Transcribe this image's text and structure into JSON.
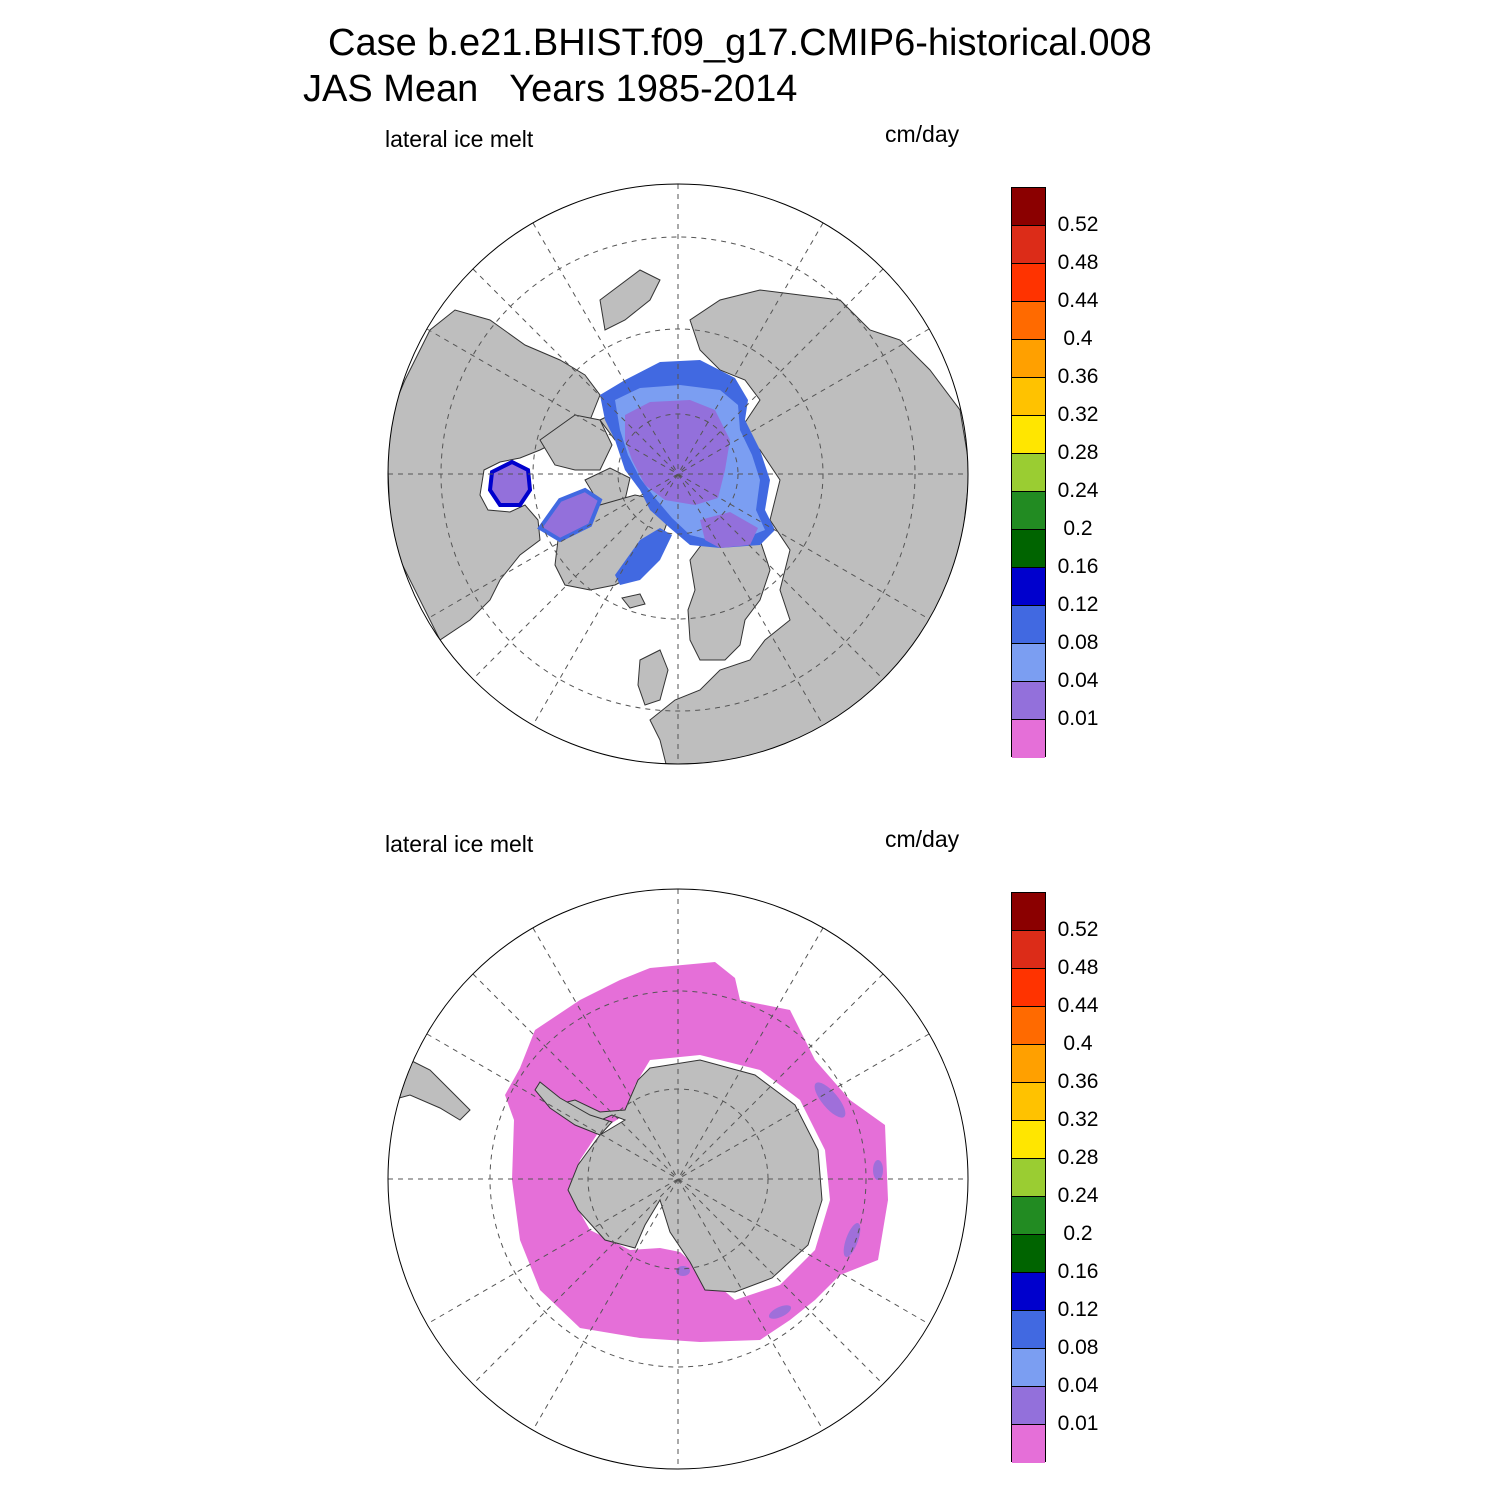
{
  "title": {
    "line1": "Case b.e21.BHIST.f09_g17.CMIP6-historical.008",
    "line2": "JAS Mean   Years 1985-2014"
  },
  "colors": {
    "land": "#bebebe",
    "coast": "#333333",
    "grid": "#555555",
    "levels": [
      "#e56fd8",
      "#9370db",
      "#7b9ef2",
      "#4169e1",
      "#0000cd",
      "#006400",
      "#228b22",
      "#9acd32",
      "#ffe600",
      "#ffc200",
      "#ffa000",
      "#ff6a00",
      "#ff3300",
      "#dc2c18",
      "#8b0000"
    ]
  },
  "colorbar": {
    "labels": [
      "0.01",
      "0.04",
      "0.08",
      "0.12",
      "0.16",
      "0.2",
      "0.24",
      "0.28",
      "0.32",
      "0.36",
      "0.4",
      "0.44",
      "0.48",
      "0.52"
    ]
  },
  "panels": [
    {
      "name": "arctic",
      "left_label": "lateral ice melt",
      "right_label": "cm/day"
    },
    {
      "name": "antarctic",
      "left_label": "lateral ice melt",
      "right_label": "cm/day"
    }
  ]
}
